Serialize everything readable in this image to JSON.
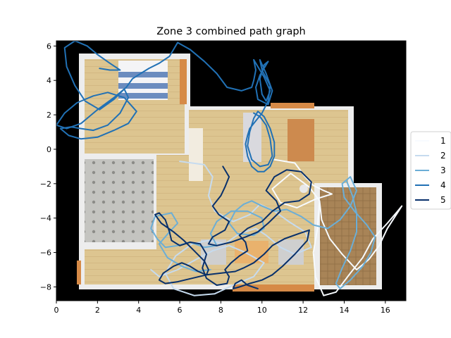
{
  "chart_data": {
    "type": "line",
    "title": "Zone 3 combined path graph",
    "xlabel": "",
    "ylabel": "",
    "xlim": [
      0,
      17
    ],
    "ylim": [
      -8.8,
      6.3
    ],
    "xticks": [
      0,
      2,
      4,
      6,
      8,
      10,
      12,
      14,
      16
    ],
    "yticks": [
      -8,
      -6,
      -4,
      -2,
      0,
      2,
      4,
      6
    ],
    "grid": false,
    "legend_position": "right",
    "background": "floor-plan image on black",
    "series": [
      {
        "name": "1",
        "color": "#f7fbff",
        "x": [
          10.6,
          11.6,
          12.1,
          12.5,
          13.0,
          13.4,
          12.6,
          11.7,
          10.9,
          10.5,
          11.4,
          12.3,
          12.8,
          12.9,
          13.3,
          13.9,
          14.6,
          15.2,
          15.7,
          16.1,
          16.8,
          16.6,
          16.1,
          15.4,
          14.9,
          14.3,
          13.6,
          13.0,
          12.6,
          12.5,
          12.7,
          12.8
        ],
        "y": [
          -0.6,
          -0.8,
          -1.6,
          -2.1,
          -2.4,
          -2.6,
          -2.9,
          -3.4,
          -3.1,
          -2.3,
          -1.4,
          -2.2,
          -3.0,
          -4.1,
          -5.2,
          -6.1,
          -7.0,
          -6.4,
          -5.6,
          -4.6,
          -3.3,
          -3.6,
          -4.3,
          -5.2,
          -6.3,
          -7.2,
          -8.3,
          -8.5,
          -7.4,
          -6.0,
          -4.6,
          -3.0
        ]
      },
      {
        "name": "2",
        "color": "#c6dbef",
        "x": [
          6.0,
          7.2,
          7.6,
          7.4,
          7.7,
          8.6,
          9.4,
          9.9,
          10.6,
          11.3,
          12.1,
          12.4,
          11.6,
          10.9,
          10.2,
          9.7,
          8.9,
          8.2,
          7.4,
          6.6,
          5.8,
          5.3,
          5.7,
          6.7,
          7.7,
          8.6,
          9.6,
          10.1,
          9.2,
          8.4,
          7.6,
          6.8,
          5.9,
          5.0,
          4.6
        ],
        "y": [
          -0.7,
          -0.9,
          -1.6,
          -2.7,
          -3.6,
          -4.2,
          -3.8,
          -3.2,
          -3.6,
          -4.2,
          -4.8,
          -5.7,
          -6.1,
          -5.7,
          -5.0,
          -4.6,
          -4.9,
          -5.5,
          -5.3,
          -5.5,
          -6.2,
          -7.2,
          -8.1,
          -8.5,
          -8.4,
          -7.9,
          -7.4,
          -6.6,
          -6.0,
          -5.6,
          -5.9,
          -6.4,
          -7.0,
          -7.4,
          -7.0
        ]
      },
      {
        "name": "3",
        "color": "#6baed6",
        "x": [
          14.1,
          14.4,
          14.6,
          14.6,
          14.3,
          13.9,
          13.6,
          13.8,
          14.3,
          14.9,
          15.3,
          15.5,
          15.1,
          14.5,
          14.0,
          13.9,
          14.3,
          14.6,
          14.3,
          13.8,
          13.2,
          12.5,
          11.9,
          11.2,
          10.6,
          10.0,
          9.5,
          9.1,
          8.7,
          8.4,
          8.8,
          9.6,
          10.1,
          10.0,
          9.3,
          8.5,
          7.8,
          7.5,
          7.8,
          7.2,
          6.5,
          5.9,
          5.3,
          4.9,
          4.6,
          4.8,
          5.6,
          5.9,
          5.5,
          5.0,
          5.4,
          6.1,
          6.8,
          7.5
        ],
        "y": [
          -1.8,
          -2.7,
          -3.7,
          -4.8,
          -5.9,
          -6.9,
          -7.8,
          -8.1,
          -7.6,
          -6.8,
          -6.0,
          -5.1,
          -4.4,
          -3.6,
          -2.8,
          -2.0,
          -1.6,
          -2.4,
          -3.3,
          -4.1,
          -4.6,
          -4.4,
          -3.9,
          -3.5,
          -3.6,
          -3.3,
          -3.0,
          -3.2,
          -3.6,
          -4.3,
          -4.9,
          -5.0,
          -4.6,
          -4.0,
          -3.6,
          -3.6,
          -4.2,
          -4.9,
          -5.6,
          -5.7,
          -5.4,
          -5.6,
          -5.7,
          -5.2,
          -4.6,
          -3.9,
          -3.7,
          -4.3,
          -4.8,
          -5.5,
          -6.3,
          -6.8,
          -7.1,
          -7.0
        ]
      },
      {
        "name": "4",
        "color": "#2171b5",
        "x": [
          2.1,
          2.6,
          3.1,
          2.6,
          2.0,
          1.5,
          0.9,
          0.4,
          0.5,
          0.9,
          1.4,
          2.1,
          2.8,
          3.3,
          3.5,
          3.1,
          2.5,
          1.8,
          1.2,
          0.7,
          0.2,
          0.6,
          1.2,
          2.0,
          2.8,
          3.5,
          3.9,
          3.3,
          2.5,
          1.8,
          1.0,
          0.4,
          0.0,
          0.5,
          1.2,
          2.0,
          2.8,
          3.4,
          3.7,
          4.1,
          4.5,
          5.0,
          5.5,
          5.9,
          6.5,
          7.2,
          7.8,
          8.3,
          9.0,
          9.5,
          9.6,
          9.7,
          9.6,
          9.7,
          10.1,
          10.4,
          10.2,
          10.0,
          9.9,
          10.1,
          10.3,
          9.9,
          9.7,
          9.8,
          10.3,
          10.5,
          10.2,
          9.9,
          10.0,
          10.4,
          10.3,
          10.0,
          9.8,
          9.6,
          9.4,
          9.3,
          9.2,
          9.3,
          9.5,
          9.8,
          10.1,
          10.4,
          10.6,
          10.6,
          10.4,
          10.1,
          9.8,
          9.6,
          9.4,
          9.3,
          9.5,
          9.9,
          10.3,
          10.5,
          10.4,
          10.2,
          9.9,
          9.6
        ],
        "y": [
          4.7,
          4.6,
          4.6,
          5.0,
          5.5,
          6.0,
          6.3,
          5.9,
          4.8,
          3.7,
          2.8,
          2.3,
          2.9,
          3.5,
          3.0,
          2.1,
          1.4,
          1.1,
          1.2,
          1.3,
          1.2,
          0.8,
          0.6,
          0.7,
          1.1,
          1.5,
          2.2,
          3.0,
          3.3,
          3.1,
          2.7,
          2.1,
          1.4,
          1.2,
          1.5,
          2.3,
          3.0,
          3.6,
          4.1,
          4.4,
          4.7,
          5.0,
          5.4,
          6.2,
          5.8,
          5.1,
          4.4,
          3.6,
          3.4,
          3.6,
          4.0,
          4.6,
          5.2,
          5.0,
          4.2,
          3.4,
          2.8,
          3.2,
          4.1,
          4.9,
          5.1,
          4.3,
          3.6,
          2.9,
          2.6,
          3.4,
          4.4,
          5.2,
          4.6,
          3.7,
          2.8,
          2.1,
          1.8,
          1.5,
          1.2,
          0.8,
          0.3,
          -0.4,
          -1.0,
          -1.3,
          -1.3,
          -1.0,
          -0.4,
          0.4,
          1.2,
          1.9,
          2.2,
          1.8,
          1.0,
          0.2,
          -0.6,
          -1.0,
          -0.9,
          -0.4,
          0.6,
          1.4,
          1.9,
          2.1
        ]
      },
      {
        "name": "5",
        "color": "#08306b",
        "x": [
          8.1,
          8.4,
          8.2,
          8.0,
          7.6,
          7.9,
          8.4,
          8.2,
          7.6,
          7.4,
          7.8,
          8.5,
          9.2,
          9.8,
          10.3,
          10.9,
          10.7,
          10.2,
          10.6,
          11.2,
          11.9,
          12.4,
          12.3,
          11.8,
          11.1,
          10.5,
          10.0,
          9.3,
          8.9,
          9.2,
          9.3,
          8.9,
          8.5,
          8.2,
          8.4,
          8.3,
          7.8,
          7.3,
          7.1,
          7.3,
          7.0,
          6.5,
          6.0,
          5.6,
          5.5,
          5.3,
          5.0,
          4.8,
          5.1,
          5.7,
          6.2,
          6.7,
          7.2,
          7.4,
          7.3,
          6.9,
          6.5,
          6.1,
          5.7,
          5.2,
          5.0,
          5.3,
          5.9,
          6.6,
          7.3,
          8.0,
          8.7,
          9.1,
          9.6,
          10.1,
          10.5,
          11.1,
          11.8,
          12.3,
          12.2,
          11.6,
          11.0,
          10.5,
          10.0,
          9.4,
          8.9,
          8.6,
          8.7,
          9.0,
          9.3,
          9.8
        ],
        "y": [
          -1.0,
          -1.6,
          -2.2,
          -2.7,
          -3.3,
          -3.8,
          -4.2,
          -4.7,
          -5.1,
          -5.5,
          -5.6,
          -5.4,
          -5.1,
          -4.8,
          -4.3,
          -3.6,
          -3.0,
          -2.4,
          -1.6,
          -1.2,
          -1.3,
          -1.9,
          -2.6,
          -3.0,
          -3.1,
          -3.6,
          -4.2,
          -4.6,
          -5.0,
          -5.4,
          -5.9,
          -6.2,
          -6.6,
          -7.0,
          -7.4,
          -7.8,
          -7.9,
          -7.5,
          -6.9,
          -6.1,
          -5.5,
          -5.4,
          -5.6,
          -5.3,
          -4.8,
          -4.1,
          -3.7,
          -3.8,
          -4.3,
          -4.8,
          -5.3,
          -5.9,
          -6.5,
          -7.0,
          -7.3,
          -7.1,
          -6.8,
          -6.6,
          -6.8,
          -7.2,
          -7.6,
          -7.8,
          -7.7,
          -7.5,
          -7.3,
          -7.2,
          -7.1,
          -6.9,
          -6.6,
          -6.1,
          -5.6,
          -5.2,
          -4.9,
          -4.7,
          -5.3,
          -6.1,
          -6.8,
          -7.3,
          -7.6,
          -7.8,
          -8.0,
          -8.1,
          -7.8,
          -7.6,
          -7.9,
          -8.1
        ]
      }
    ]
  }
}
